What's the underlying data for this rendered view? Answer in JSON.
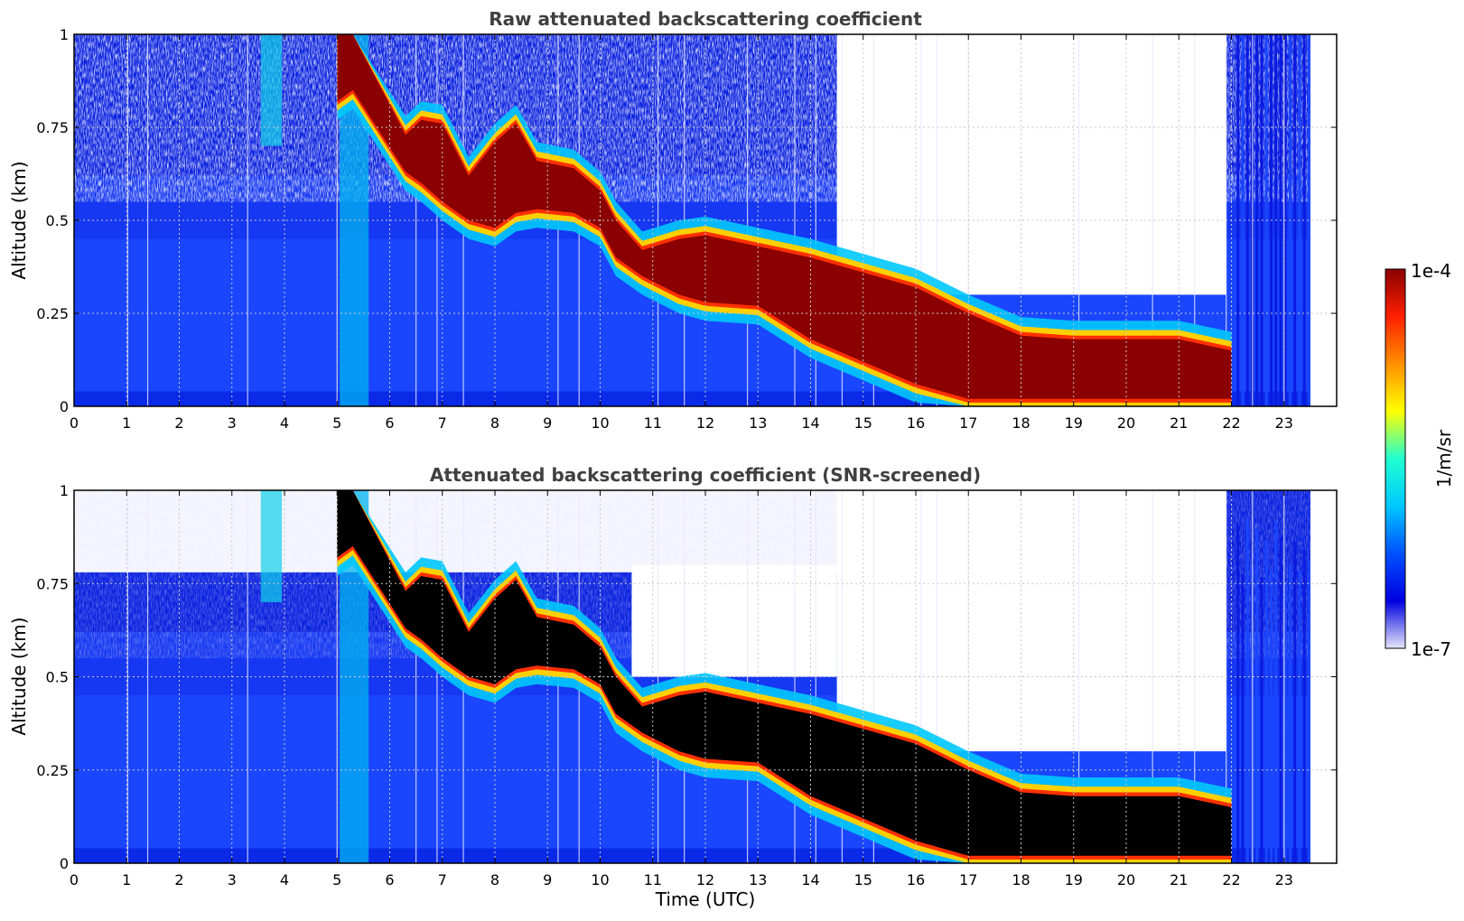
{
  "chart_data": [
    {
      "type": "heatmap",
      "title": "Raw attenuated backscattering coefficient",
      "xlabel": "",
      "ylabel": "Altitude (km)",
      "xlim": [
        0,
        24
      ],
      "ylim": [
        0,
        1
      ],
      "xticks": [
        "0",
        "1",
        "2",
        "3",
        "4",
        "5",
        "6",
        "7",
        "8",
        "9",
        "10",
        "11",
        "12",
        "13",
        "14",
        "15",
        "16",
        "17",
        "18",
        "19",
        "20",
        "21",
        "22",
        "23"
      ],
      "yticks": [
        "0",
        "0.25",
        "0.5",
        "0.75",
        "1"
      ],
      "grid": true,
      "data_end_hour": 23.5,
      "cloud_layer": [
        {
          "x": 5.0,
          "bottom": 0.82,
          "top": 1.0
        },
        {
          "x": 5.3,
          "bottom": 0.85,
          "top": 1.0
        },
        {
          "x": 6.3,
          "bottom": 0.63,
          "top": 0.73
        },
        {
          "x": 6.6,
          "bottom": 0.6,
          "top": 0.77
        },
        {
          "x": 7.0,
          "bottom": 0.55,
          "top": 0.76
        },
        {
          "x": 7.5,
          "bottom": 0.5,
          "top": 0.62
        },
        {
          "x": 8.0,
          "bottom": 0.48,
          "top": 0.71
        },
        {
          "x": 8.4,
          "bottom": 0.52,
          "top": 0.76
        },
        {
          "x": 8.8,
          "bottom": 0.53,
          "top": 0.66
        },
        {
          "x": 9.5,
          "bottom": 0.52,
          "top": 0.64
        },
        {
          "x": 10.0,
          "bottom": 0.48,
          "top": 0.58
        },
        {
          "x": 10.3,
          "bottom": 0.4,
          "top": 0.5
        },
        {
          "x": 10.8,
          "bottom": 0.35,
          "top": 0.42
        },
        {
          "x": 11.5,
          "bottom": 0.3,
          "top": 0.45
        },
        {
          "x": 12.0,
          "bottom": 0.28,
          "top": 0.46
        },
        {
          "x": 13.0,
          "bottom": 0.27,
          "top": 0.43
        },
        {
          "x": 14.0,
          "bottom": 0.18,
          "top": 0.4
        },
        {
          "x": 15.0,
          "bottom": 0.12,
          "top": 0.36
        },
        {
          "x": 16.0,
          "bottom": 0.06,
          "top": 0.32
        },
        {
          "x": 17.0,
          "bottom": 0.02,
          "top": 0.25
        },
        {
          "x": 18.0,
          "bottom": 0.02,
          "top": 0.19
        },
        {
          "x": 19.0,
          "bottom": 0.02,
          "top": 0.18
        },
        {
          "x": 20.0,
          "bottom": 0.02,
          "top": 0.18
        },
        {
          "x": 21.0,
          "bottom": 0.02,
          "top": 0.18
        },
        {
          "x": 22.0,
          "bottom": 0.02,
          "top": 0.15
        }
      ]
    },
    {
      "type": "heatmap",
      "title": "Attenuated backscattering coefficient (SNR-screened)",
      "xlabel": "Time (UTC)",
      "ylabel": "Altitude (km)",
      "xlim": [
        0,
        24
      ],
      "ylim": [
        0,
        1
      ],
      "xticks": [
        "0",
        "1",
        "2",
        "3",
        "4",
        "5",
        "6",
        "7",
        "8",
        "9",
        "10",
        "11",
        "12",
        "13",
        "14",
        "15",
        "16",
        "17",
        "18",
        "19",
        "20",
        "21",
        "22",
        "23"
      ],
      "yticks": [
        "0",
        "0.25",
        "0.5",
        "0.75",
        "1"
      ],
      "grid": true,
      "data_end_hour": 23.5,
      "saturated_color": "#000000"
    }
  ],
  "colorbar": {
    "label": "1/m/sr",
    "max_label": "1e-4",
    "min_label": "1e-7",
    "scale": "log",
    "colormap": [
      "#e6e6fa",
      "#0000e0",
      "#0050ff",
      "#00c8ff",
      "#20ffd0",
      "#ffff00",
      "#ff9000",
      "#ff2000",
      "#8b0000"
    ]
  },
  "colors": {
    "background_blue": "#1a4bff",
    "deep_blue": "#0a2ae8",
    "cloud_red": "#8b0000",
    "title_gray": "#404040",
    "grid": "#c8c8c8"
  }
}
